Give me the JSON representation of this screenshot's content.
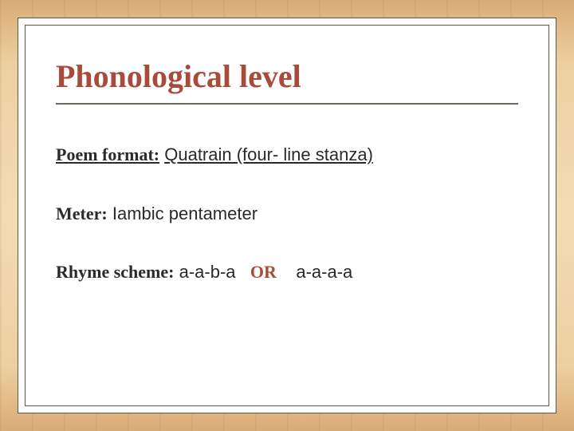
{
  "slide": {
    "title": "Phonological level",
    "title_color": "#a84b3a",
    "title_fontsize": 40,
    "divider_color": "#6b6b5c",
    "body_fontsize": 22,
    "body_color": "#2a2a2a",
    "lines": [
      {
        "label": "Poem format:",
        "value": "Quatrain (four- line stanza)",
        "underline_value": true
      },
      {
        "label": "Meter:",
        "value": "Iambic pentameter",
        "underline_value": false
      },
      {
        "label": "Rhyme scheme:",
        "value_a": "a-a-b-a",
        "or": "OR",
        "value_b": "a-a-a-a"
      }
    ],
    "background": {
      "wood_light": "#f2dcb5",
      "wood_dark": "#d9ab75",
      "frame_bg": "#ffffff",
      "frame_border": "#5a5a4a"
    }
  }
}
